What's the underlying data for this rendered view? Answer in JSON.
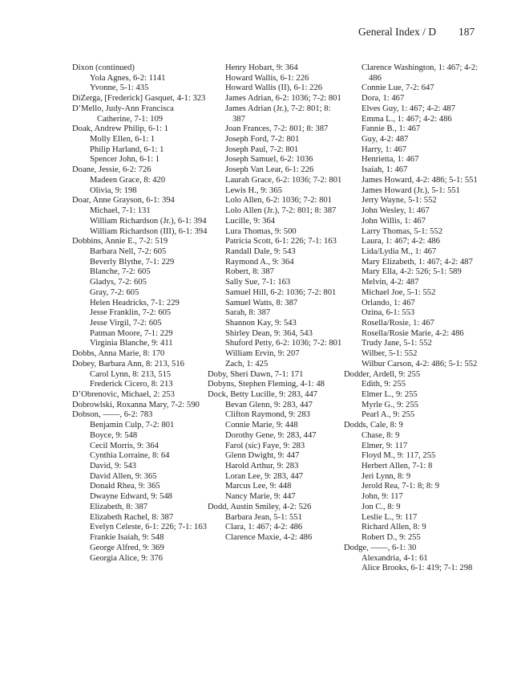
{
  "header": {
    "title": "General Index / D",
    "page_number": "187"
  },
  "columns": [
    [
      [
        0,
        "Dixon (continued)"
      ],
      [
        1,
        "Yola Agnes, 6-2: 1141"
      ],
      [
        1,
        "Yvonne, 5-1: 435"
      ],
      [
        0,
        "DiZerga, [Frederick] Gasquet, 4-1: 323"
      ],
      [
        0,
        "D’Mello, Judy-Ann Francisca Catherine, 7-1: 109"
      ],
      [
        0,
        "Doak, Andrew Philip, 6-1: 1"
      ],
      [
        1,
        "Molly Ellen, 6-1: 1"
      ],
      [
        1,
        "Philip Harland, 6-1: 1"
      ],
      [
        1,
        "Spencer John, 6-1: 1"
      ],
      [
        0,
        "Doane, Jessie, 6-2: 726"
      ],
      [
        1,
        "Madeen Grace, 8: 420"
      ],
      [
        1,
        "Olivia, 9: 198"
      ],
      [
        0,
        "Doar, Anne Grayson, 6-1: 394"
      ],
      [
        1,
        "Michael, 7-1: 131"
      ],
      [
        1,
        "William Richardson (Jr.), 6-1: 394"
      ],
      [
        1,
        "William Richardson (III), 6-1: 394"
      ],
      [
        0,
        "Dobbins, Annie E., 7-2: 519"
      ],
      [
        1,
        "Barbara Nell, 7-2: 605"
      ],
      [
        1,
        "Beverly Blythe, 7-1: 229"
      ],
      [
        1,
        "Blanche, 7-2: 605"
      ],
      [
        1,
        "Gladys, 7-2: 605"
      ],
      [
        1,
        "Gray, 7-2: 605"
      ],
      [
        1,
        "Helen Headricks, 7-1: 229"
      ],
      [
        1,
        "Jesse Franklin, 7-2: 605"
      ],
      [
        1,
        "Jesse Virgil, 7-2: 605"
      ],
      [
        1,
        "Patman Moore, 7-1: 229"
      ],
      [
        1,
        "Virginia Blanche, 9: 411"
      ],
      [
        0,
        "Dobbs, Anna Marie, 8: 170"
      ],
      [
        0,
        "Dobey, Barbara Ann, 8: 213, 516"
      ],
      [
        1,
        "Carol Lynn, 8: 213, 515"
      ],
      [
        1,
        "Frederick Cicero, 8: 213"
      ],
      [
        0,
        "D’Obrenovic, Michael, 2: 253"
      ],
      [
        0,
        "Dobrowlski, Roxanna Mary, 7-2: 590"
      ],
      [
        0,
        "Dobson, ——, 6-2: 783"
      ],
      [
        1,
        "Benjamin Culp, 7-2: 801"
      ],
      [
        1,
        "Boyce, 9: 548"
      ],
      [
        1,
        "Cecil Morris, 9: 364"
      ],
      [
        1,
        "Cynthia Lorraine, 8: 64"
      ],
      [
        1,
        "David, 9: 543"
      ],
      [
        1,
        "David Allen, 9: 365"
      ],
      [
        1,
        "Donald Rhea, 9: 365"
      ],
      [
        1,
        "Dwayne Edward, 9: 548"
      ],
      [
        1,
        "Elizabeth, 8: 387"
      ],
      [
        1,
        "Elizabeth Rachel, 8: 387"
      ],
      [
        1,
        "Evelyn Celeste, 6-1: 226; 7-1: 163"
      ],
      [
        1,
        "Frankie Isaiah, 9: 548"
      ],
      [
        1,
        "George Alfred, 9: 369"
      ],
      [
        1,
        "Georgia Alice, 9: 376"
      ]
    ],
    [
      [
        1,
        "Henry Hobart, 9: 364"
      ],
      [
        1,
        "Howard Wallis, 6-1: 226"
      ],
      [
        1,
        "Howard Wallis (II), 6-1: 226"
      ],
      [
        1,
        "James Adrian, 6-2: 1036; 7-2: 801"
      ],
      [
        1,
        "James Adrian (Jr.), 7-2: 801; 8: 387"
      ],
      [
        1,
        "Joan Frances, 7-2: 801; 8: 387"
      ],
      [
        1,
        "Joseph Ford, 7-2: 801"
      ],
      [
        1,
        "Joseph Paul, 7-2: 801"
      ],
      [
        1,
        "Joseph Samuel, 6-2: 1036"
      ],
      [
        1,
        "Joseph Van Lear, 6-1: 226"
      ],
      [
        1,
        "Laurah Grace, 6-2: 1036; 7-2: 801"
      ],
      [
        1,
        "Lewis H., 9: 365"
      ],
      [
        1,
        "Lolo Allen, 6-2: 1036; 7-2: 801"
      ],
      [
        1,
        "Lolo Allen (Jr.), 7-2: 801; 8: 387"
      ],
      [
        1,
        "Lucille, 9: 364"
      ],
      [
        1,
        "Lura Thomas, 9: 500"
      ],
      [
        1,
        "Patricia Scott, 6-1: 226; 7-1: 163"
      ],
      [
        1,
        "Randall Dale, 9: 543"
      ],
      [
        1,
        "Raymond A., 9: 364"
      ],
      [
        1,
        "Robert, 8: 387"
      ],
      [
        1,
        "Sally Sue, 7-1: 163"
      ],
      [
        1,
        "Samuel Hill, 6-2: 1036; 7-2: 801"
      ],
      [
        1,
        "Samuel Watts, 8: 387"
      ],
      [
        1,
        "Sarah, 8: 387"
      ],
      [
        1,
        "Shannon Kay, 9: 543"
      ],
      [
        1,
        "Shirley Dean, 9: 364, 543"
      ],
      [
        1,
        "Shuford Petty, 6-2: 1036; 7-2: 801"
      ],
      [
        1,
        "William Ervin, 9: 207"
      ],
      [
        1,
        "Zach, 1: 425"
      ],
      [
        0,
        "Doby, Sheri Dawn, 7-1: 171"
      ],
      [
        0,
        "Dobyns, Stephen Fleming, 4-1: 48"
      ],
      [
        0,
        "Dock, Betty Lucille, 9: 283, 447"
      ],
      [
        1,
        "Bevan Glenn, 9: 283, 447"
      ],
      [
        1,
        "Clifton Raymond, 9: 283"
      ],
      [
        1,
        "Connie Marie, 9: 448"
      ],
      [
        1,
        "Dorothy Gene, 9: 283, 447"
      ],
      [
        1,
        "Farol (sic) Faye, 9: 283"
      ],
      [
        1,
        "Glenn Dwight, 9: 447"
      ],
      [
        1,
        "Harold Arthur, 9: 283"
      ],
      [
        1,
        "Loran Lee, 9: 283, 447"
      ],
      [
        1,
        "Marcus Lee, 9: 448"
      ],
      [
        1,
        "Nancy Marie, 9: 447"
      ],
      [
        0,
        "Dodd, Austin Smiley, 4-2: 526"
      ],
      [
        1,
        "Barbara Jean, 5-1: 551"
      ],
      [
        1,
        "Clara, 1: 467; 4-2: 486"
      ],
      [
        1,
        "Clarence Maxie, 4-2: 486"
      ]
    ],
    [
      [
        1,
        "Clarence Washington, 1: 467; 4-2: 486"
      ],
      [
        1,
        "Connie Lue, 7-2: 647"
      ],
      [
        1,
        "Dora, 1: 467"
      ],
      [
        1,
        "Elves Guy, 1: 467; 4-2: 487"
      ],
      [
        1,
        "Emma L., 1: 467; 4-2: 486"
      ],
      [
        1,
        "Fannie B., 1: 467"
      ],
      [
        1,
        "Guy, 4-2: 487"
      ],
      [
        1,
        "Harry, 1: 467"
      ],
      [
        1,
        "Henrietta, 1: 467"
      ],
      [
        1,
        "Isaiah, 1: 467"
      ],
      [
        1,
        "James Howard, 4-2: 486; 5-1: 551"
      ],
      [
        1,
        "James Howard (Jr.), 5-1: 551"
      ],
      [
        1,
        "Jerry Wayne, 5-1: 552"
      ],
      [
        1,
        "John Wesley, 1: 467"
      ],
      [
        1,
        "John Willis, 1: 467"
      ],
      [
        1,
        "Larry Thomas, 5-1: 552"
      ],
      [
        1,
        "Laura, 1: 467; 4-2: 486"
      ],
      [
        1,
        "Lida/Lydia M., 1: 467"
      ],
      [
        1,
        "Mary Elizabeth, 1: 467; 4-2: 487"
      ],
      [
        1,
        "Mary Ella, 4-2: 526; 5-1: 589"
      ],
      [
        1,
        "Melvin, 4-2: 487"
      ],
      [
        1,
        "Michael Joe, 5-1: 552"
      ],
      [
        1,
        "Orlando, 1: 467"
      ],
      [
        1,
        "Ozina, 6-1: 553"
      ],
      [
        1,
        "Rosella/Rosie, 1: 467"
      ],
      [
        1,
        "Rosella/Rosie Marie, 4-2: 486"
      ],
      [
        1,
        "Trudy Jane, 5-1: 552"
      ],
      [
        1,
        "Wilber, 5-1: 552"
      ],
      [
        1,
        "Wilbur Carson, 4-2: 486; 5-1: 552"
      ],
      [
        0,
        "Dodder, Ardell, 9: 255"
      ],
      [
        1,
        "Edith, 9: 255"
      ],
      [
        1,
        "Elmer L., 9: 255"
      ],
      [
        1,
        "Myrle G., 9: 255"
      ],
      [
        1,
        "Pearl A., 9: 255"
      ],
      [
        0,
        "Dodds, Cale, 8: 9"
      ],
      [
        1,
        "Chase, 8: 9"
      ],
      [
        1,
        "Elmer, 9: 117"
      ],
      [
        1,
        "Floyd M., 9: 117, 255"
      ],
      [
        1,
        "Herbert Allen, 7-1: 8"
      ],
      [
        1,
        "Jeri Lynn, 8: 9"
      ],
      [
        1,
        "Jerold Rea, 7-1: 8; 8: 9"
      ],
      [
        1,
        "John, 9: 117"
      ],
      [
        1,
        "Jon C., 8: 9"
      ],
      [
        1,
        "Leslie L., 9: 117"
      ],
      [
        1,
        "Richard Allen, 8: 9"
      ],
      [
        1,
        "Robert D., 9: 255"
      ],
      [
        0,
        "Dodge, ——, 6-1: 30"
      ],
      [
        1,
        "Alexandria, 4-1: 61"
      ],
      [
        1,
        "Alice Brooks, 6-1: 419; 7-1: 298"
      ]
    ]
  ]
}
